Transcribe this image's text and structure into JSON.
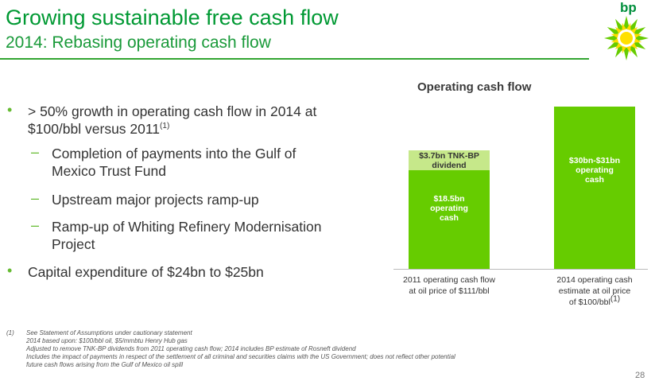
{
  "header": {
    "title": "Growing sustainable free cash flow",
    "subtitle": "2014: Rebasing operating cash flow",
    "logo_text": "bp"
  },
  "bullets": [
    {
      "text": "> 50% growth in operating cash flow in 2014 at",
      "text2": "$100/bbl versus 2011",
      "sup": "(1)"
    },
    {
      "text": "Capital expenditure of $24bn to $25bn"
    }
  ],
  "sub_bullets": [
    {
      "line1": "Completion of payments into the Gulf of",
      "line2": "Mexico Trust Fund"
    },
    {
      "line1": "Upstream major projects ramp-up"
    },
    {
      "line1": "Ramp-up of Whiting Refinery Modernisation",
      "line2": "Project"
    }
  ],
  "chart_data": {
    "type": "bar",
    "title": "Operating cash flow",
    "categories": [
      "2011 operating cash flow at oil price of $111/bbl",
      "2014 operating cash estimate at oil price of $100/bbl(1)"
    ],
    "category_lines": [
      [
        "2011 operating cash flow",
        "at oil price of $111/bbl"
      ],
      [
        "2014 operating cash",
        "estimate at oil price",
        "of $100/bbl"
      ]
    ],
    "category_sup": [
      "",
      "(1)"
    ],
    "series": [
      {
        "name": "operating cash",
        "values": [
          18.5,
          30.5
        ]
      },
      {
        "name": "TNK-BP dividend",
        "values": [
          3.7,
          0
        ]
      }
    ],
    "bar_labels": [
      [
        "$18.5bn",
        "operating",
        "cash"
      ],
      [
        "$30bn-$31bn",
        "operating",
        "cash"
      ]
    ],
    "dividend_label": [
      "$3.7bn TNK-BP",
      "dividend"
    ],
    "units": "$bn",
    "colors": {
      "operating": "#66cc00",
      "dividend": "#c6e88a"
    }
  },
  "footnotes": {
    "marker": "(1)",
    "lines": [
      "See Statement of Assumptions under cautionary statement",
      "2014 based upon: $100/bbl oil, $5/mmbtu Henry Hub gas",
      "Adjusted to remove TNK-BP dividends from 2011 operating cash flow; 2014 includes BP estimate of Rosneft dividend",
      "Includes the impact of payments in respect of the settlement of all criminal and securities claims with the US Government; does not reflect other potential",
      "future cash flows arising from the Gulf of Mexico oil spill"
    ]
  },
  "page_number": "28",
  "colors": {
    "brand_green": "#009933",
    "bullet_green": "#66bb33"
  }
}
